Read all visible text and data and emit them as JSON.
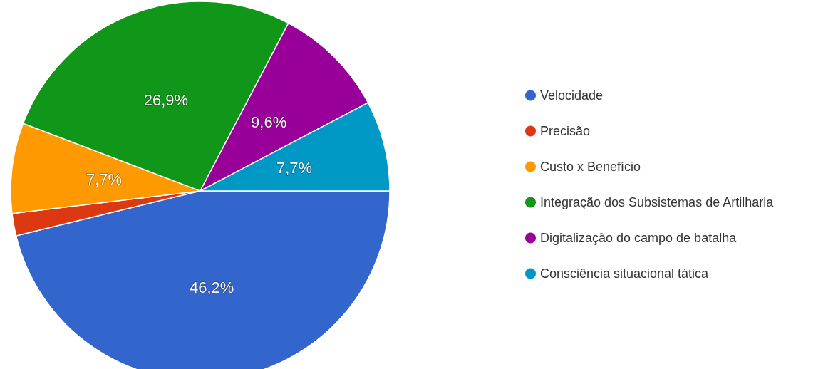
{
  "chart_data": {
    "type": "pie",
    "categories": [
      "Velocidade",
      "Precisão",
      "Custo x Benefício",
      "Integração dos Subsistemas de Artilharia",
      "Digitalização do campo de batalha",
      "Consciência situacional tática"
    ],
    "values": [
      46.2,
      1.9,
      7.7,
      26.9,
      9.6,
      7.7
    ],
    "value_labels": [
      "46,2%",
      null,
      "7,7%",
      "26,9%",
      "9,6%",
      "7,7%"
    ],
    "colors": [
      "#3366cc",
      "#dc3912",
      "#ff9900",
      "#109618",
      "#990099",
      "#0099c6"
    ],
    "legend": "right"
  }
}
